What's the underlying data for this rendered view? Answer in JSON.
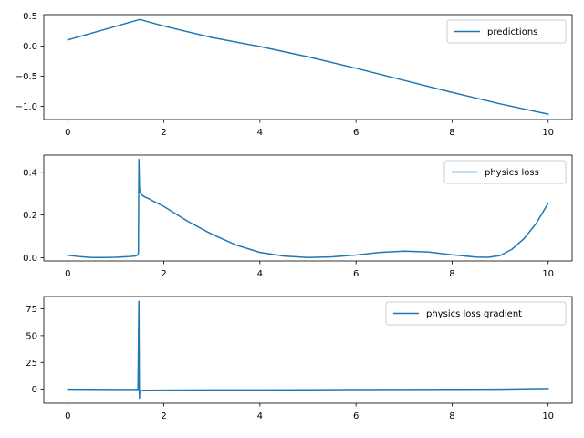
{
  "figure": {
    "background": "#ffffff",
    "line_color": "#1f77b4"
  },
  "chart_data": [
    {
      "type": "line",
      "title": "",
      "xlabel": "",
      "ylabel": "",
      "xlim": [
        -0.5,
        10.5
      ],
      "ylim": [
        -1.22,
        0.52
      ],
      "xticks": [
        0,
        2,
        4,
        6,
        8,
        10
      ],
      "xtick_labels": [
        "0",
        "2",
        "4",
        "6",
        "8",
        "10"
      ],
      "yticks": [
        0.5,
        0.0,
        -0.5,
        -1.0
      ],
      "ytick_labels": [
        "0.5",
        "0.0",
        "−0.5",
        "−1.0"
      ],
      "legend": "upper right",
      "grid": false,
      "series": [
        {
          "name": "predictions",
          "color": "#1f77b4",
          "x": [
            0,
            1.5,
            2,
            3,
            4,
            5,
            6,
            7,
            8,
            9,
            10
          ],
          "y": [
            0.1,
            0.44,
            0.33,
            0.14,
            -0.01,
            -0.18,
            -0.37,
            -0.57,
            -0.77,
            -0.96,
            -1.13
          ]
        }
      ]
    },
    {
      "type": "line",
      "title": "",
      "xlabel": "",
      "ylabel": "",
      "xlim": [
        -0.5,
        10.5
      ],
      "ylim": [
        -0.015,
        0.48
      ],
      "xticks": [
        0,
        2,
        4,
        6,
        8,
        10
      ],
      "xtick_labels": [
        "0",
        "2",
        "4",
        "6",
        "8",
        "10"
      ],
      "yticks": [
        0.0,
        0.2,
        0.4
      ],
      "ytick_labels": [
        "0.0",
        "0.2",
        "0.4"
      ],
      "legend": "upper right",
      "grid": false,
      "series": [
        {
          "name": "physics loss",
          "color": "#1f77b4",
          "x": [
            0,
            0.25,
            0.5,
            0.75,
            1.0,
            1.25,
            1.4,
            1.45,
            1.47,
            1.48,
            1.49,
            1.5,
            1.52,
            1.55,
            1.6,
            1.7,
            1.8,
            2.0,
            2.5,
            3.0,
            3.5,
            4.0,
            4.5,
            5.0,
            5.5,
            6.0,
            6.5,
            7.0,
            7.5,
            8.0,
            8.5,
            8.75,
            9.0,
            9.25,
            9.5,
            9.75,
            10.0
          ],
          "y": [
            0.012,
            0.005,
            0.001,
            0.001,
            0.002,
            0.005,
            0.008,
            0.012,
            0.02,
            0.46,
            0.34,
            0.31,
            0.3,
            0.292,
            0.285,
            0.275,
            0.262,
            0.24,
            0.17,
            0.11,
            0.06,
            0.025,
            0.008,
            0.001,
            0.004,
            0.013,
            0.025,
            0.031,
            0.027,
            0.014,
            0.003,
            0.002,
            0.01,
            0.04,
            0.09,
            0.16,
            0.255
          ]
        }
      ]
    },
    {
      "type": "line",
      "title": "",
      "xlabel": "",
      "ylabel": "",
      "xlim": [
        -0.5,
        10.5
      ],
      "ylim": [
        -13.1,
        86.5
      ],
      "xticks": [
        0,
        2,
        4,
        6,
        8,
        10
      ],
      "xtick_labels": [
        "0",
        "2",
        "4",
        "6",
        "8",
        "10"
      ],
      "yticks": [
        75,
        50,
        25,
        0
      ],
      "ytick_labels": [
        "75",
        "50",
        "25",
        "0"
      ],
      "legend": "upper right",
      "grid": false,
      "series": [
        {
          "name": "physics loss gradient",
          "color": "#1f77b4",
          "x": [
            0,
            0.5,
            1.0,
            1.4,
            1.46,
            1.48,
            1.49,
            1.5,
            1.52,
            1.6,
            2.0,
            3.0,
            4.0,
            5.0,
            6.0,
            7.0,
            8.0,
            9.0,
            9.5,
            10.0
          ],
          "y": [
            0.0,
            -0.1,
            -0.2,
            -0.2,
            -0.3,
            82.0,
            -8.5,
            -1.5,
            -1.2,
            -1.0,
            -0.9,
            -0.7,
            -0.6,
            -0.5,
            -0.3,
            -0.2,
            -0.1,
            0.0,
            0.3,
            0.6
          ]
        }
      ]
    }
  ]
}
